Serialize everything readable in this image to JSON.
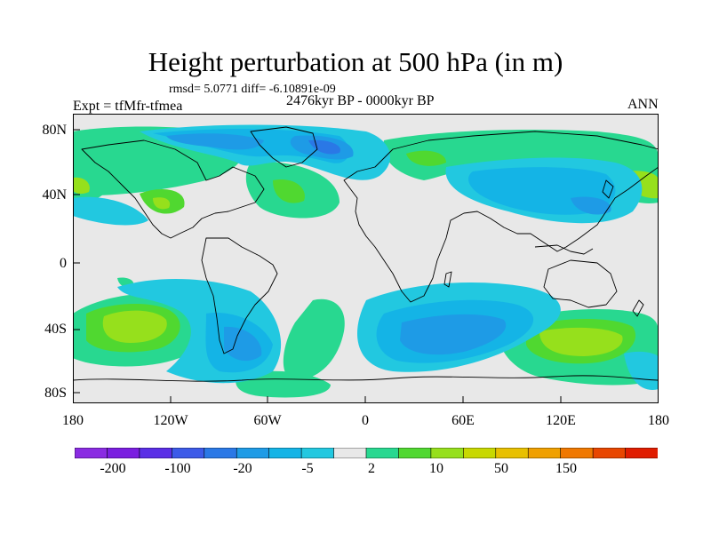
{
  "title": "Height perturbation at 500 hPa (in m)",
  "stats": "rmsd= 5.0771 diff= -6.10891e-09",
  "period": "2476kyr BP - 0000kyr BP",
  "experiment": "Expt = tfMfr-tfmea",
  "season": "ANN",
  "map": {
    "lat_labels": [
      "80N",
      "40N",
      "0",
      "40S",
      "80S"
    ],
    "lon_labels": [
      "180",
      "120W",
      "60W",
      "0",
      "60E",
      "120E",
      "180"
    ],
    "background_color": "#e8e8e8"
  },
  "colorbar": {
    "colors": [
      "#8a2be2",
      "#7a1ee0",
      "#5a2ee6",
      "#3c5ae8",
      "#2a78e6",
      "#1e9be6",
      "#14b4e6",
      "#22c8e0",
      "#e8e8e8",
      "#28d890",
      "#50d830",
      "#96e01c",
      "#c8d800",
      "#e8c000",
      "#f0a000",
      "#f07800",
      "#e84600",
      "#e01c00"
    ],
    "labels": [
      "-200",
      "-100",
      "-20",
      "-5",
      "2",
      "10",
      "50",
      "150"
    ]
  }
}
